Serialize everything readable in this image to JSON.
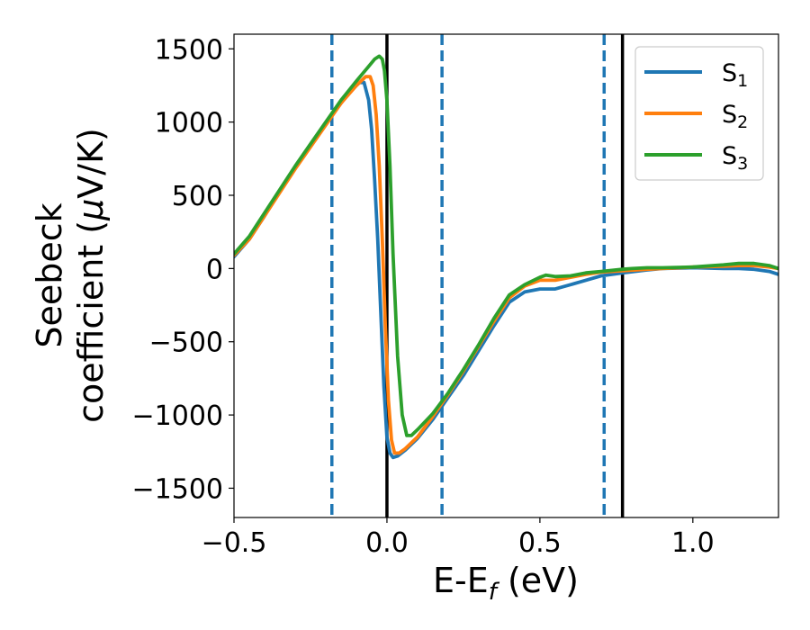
{
  "chart_data": {
    "type": "line",
    "xlabel_main": "E-E",
    "xlabel_sub": "f",
    "xlabel_unit": " (eV)",
    "ylabel_line1": "Seebeck",
    "ylabel_line2_text": "coefficient  (",
    "ylabel_line2_mu": "μ",
    "ylabel_line2_unit": "V/K)",
    "xlim": [
      -0.5,
      1.28
    ],
    "ylim": [
      -1700,
      1600
    ],
    "xticks": [
      -0.5,
      0.0,
      0.5,
      1.0
    ],
    "xtick_labels": [
      "−0.5",
      "0.0",
      "0.5",
      "1.0"
    ],
    "yticks": [
      -1500,
      -1000,
      -500,
      0,
      500,
      1000,
      1500
    ],
    "ytick_labels": [
      "−1500",
      "−1000",
      "−500",
      "0",
      "500",
      "1000",
      "1500"
    ],
    "legend_position": "top-right",
    "grid": false,
    "vlines": [
      {
        "x": -0.18,
        "style": "dashed",
        "color": "#1f77b4"
      },
      {
        "x": 0.18,
        "style": "dashed",
        "color": "#1f77b4"
      },
      {
        "x": 0.71,
        "style": "dashed",
        "color": "#1f77b4"
      },
      {
        "x": 0.0,
        "style": "solid",
        "color": "#000000"
      },
      {
        "x": 0.77,
        "style": "solid",
        "color": "#000000"
      }
    ],
    "series": [
      {
        "name": "S",
        "sub": "1",
        "color": "#1f77b4",
        "points": [
          [
            -0.5,
            80
          ],
          [
            -0.45,
            200
          ],
          [
            -0.4,
            360
          ],
          [
            -0.35,
            530
          ],
          [
            -0.3,
            690
          ],
          [
            -0.25,
            840
          ],
          [
            -0.2,
            990
          ],
          [
            -0.15,
            1130
          ],
          [
            -0.12,
            1210
          ],
          [
            -0.09,
            1270
          ],
          [
            -0.075,
            1270
          ],
          [
            -0.06,
            1150
          ],
          [
            -0.05,
            950
          ],
          [
            -0.04,
            600
          ],
          [
            -0.03,
            200
          ],
          [
            -0.02,
            -300
          ],
          [
            -0.01,
            -800
          ],
          [
            0.0,
            -1150
          ],
          [
            0.01,
            -1260
          ],
          [
            0.02,
            -1290
          ],
          [
            0.035,
            -1280
          ],
          [
            0.06,
            -1240
          ],
          [
            0.1,
            -1160
          ],
          [
            0.15,
            -1030
          ],
          [
            0.2,
            -880
          ],
          [
            0.25,
            -730
          ],
          [
            0.3,
            -560
          ],
          [
            0.35,
            -390
          ],
          [
            0.4,
            -230
          ],
          [
            0.45,
            -160
          ],
          [
            0.5,
            -140
          ],
          [
            0.55,
            -140
          ],
          [
            0.6,
            -110
          ],
          [
            0.65,
            -80
          ],
          [
            0.7,
            -50
          ],
          [
            0.77,
            -30
          ],
          [
            0.85,
            -10
          ],
          [
            0.9,
            0
          ],
          [
            1.0,
            5
          ],
          [
            1.1,
            0
          ],
          [
            1.15,
            0
          ],
          [
            1.2,
            -5
          ],
          [
            1.25,
            -20
          ],
          [
            1.28,
            -40
          ]
        ]
      },
      {
        "name": "S",
        "sub": "2",
        "color": "#ff7f0e",
        "points": [
          [
            -0.5,
            90
          ],
          [
            -0.45,
            200
          ],
          [
            -0.4,
            360
          ],
          [
            -0.35,
            520
          ],
          [
            -0.3,
            680
          ],
          [
            -0.25,
            830
          ],
          [
            -0.2,
            980
          ],
          [
            -0.15,
            1130
          ],
          [
            -0.1,
            1250
          ],
          [
            -0.07,
            1310
          ],
          [
            -0.055,
            1310
          ],
          [
            -0.045,
            1250
          ],
          [
            -0.035,
            1050
          ],
          [
            -0.025,
            700
          ],
          [
            -0.015,
            200
          ],
          [
            -0.005,
            -400
          ],
          [
            0.005,
            -900
          ],
          [
            0.015,
            -1170
          ],
          [
            0.025,
            -1260
          ],
          [
            0.04,
            -1260
          ],
          [
            0.06,
            -1230
          ],
          [
            0.1,
            -1150
          ],
          [
            0.15,
            -1010
          ],
          [
            0.2,
            -860
          ],
          [
            0.25,
            -700
          ],
          [
            0.3,
            -530
          ],
          [
            0.35,
            -360
          ],
          [
            0.4,
            -200
          ],
          [
            0.45,
            -120
          ],
          [
            0.5,
            -80
          ],
          [
            0.55,
            -80
          ],
          [
            0.6,
            -60
          ],
          [
            0.65,
            -40
          ],
          [
            0.7,
            -25
          ],
          [
            0.77,
            -15
          ],
          [
            0.85,
            -5
          ],
          [
            0.9,
            0
          ],
          [
            1.0,
            10
          ],
          [
            1.1,
            15
          ],
          [
            1.15,
            20
          ],
          [
            1.2,
            20
          ],
          [
            1.25,
            10
          ],
          [
            1.28,
            0
          ]
        ]
      },
      {
        "name": "S",
        "sub": "3",
        "color": "#2ca02c",
        "points": [
          [
            -0.5,
            100
          ],
          [
            -0.45,
            220
          ],
          [
            -0.4,
            380
          ],
          [
            -0.35,
            540
          ],
          [
            -0.3,
            700
          ],
          [
            -0.25,
            850
          ],
          [
            -0.2,
            1000
          ],
          [
            -0.15,
            1150
          ],
          [
            -0.1,
            1280
          ],
          [
            -0.06,
            1380
          ],
          [
            -0.04,
            1430
          ],
          [
            -0.025,
            1450
          ],
          [
            -0.015,
            1430
          ],
          [
            -0.008,
            1350
          ],
          [
            0.0,
            1150
          ],
          [
            0.01,
            700
          ],
          [
            0.02,
            100
          ],
          [
            0.035,
            -600
          ],
          [
            0.05,
            -1000
          ],
          [
            0.065,
            -1140
          ],
          [
            0.08,
            -1140
          ],
          [
            0.1,
            -1100
          ],
          [
            0.15,
            -990
          ],
          [
            0.2,
            -850
          ],
          [
            0.25,
            -690
          ],
          [
            0.3,
            -520
          ],
          [
            0.35,
            -340
          ],
          [
            0.4,
            -180
          ],
          [
            0.45,
            -110
          ],
          [
            0.5,
            -60
          ],
          [
            0.52,
            -45
          ],
          [
            0.55,
            -55
          ],
          [
            0.6,
            -50
          ],
          [
            0.65,
            -30
          ],
          [
            0.7,
            -20
          ],
          [
            0.77,
            -5
          ],
          [
            0.8,
            0
          ],
          [
            0.85,
            5
          ],
          [
            0.9,
            5
          ],
          [
            1.0,
            10
          ],
          [
            1.1,
            25
          ],
          [
            1.15,
            35
          ],
          [
            1.2,
            35
          ],
          [
            1.25,
            20
          ],
          [
            1.28,
            0
          ]
        ]
      }
    ]
  }
}
